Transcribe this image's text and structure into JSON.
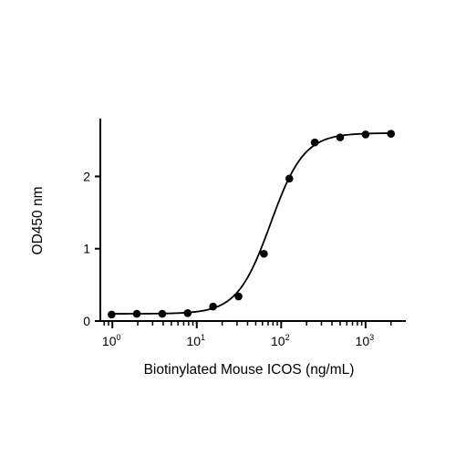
{
  "chart_data": {
    "type": "scatter",
    "title": "",
    "xlabel": "Biotinylated Mouse ICOS (ng/mL)",
    "ylabel": "OD450 nm",
    "x_scale": "log",
    "xlim": [
      0.72,
      3000
    ],
    "ylim": [
      0,
      2.8
    ],
    "x_ticks": [
      {
        "base": "10",
        "exp": "0",
        "value": 1
      },
      {
        "base": "10",
        "exp": "1",
        "value": 10
      },
      {
        "base": "10",
        "exp": "2",
        "value": 100
      },
      {
        "base": "10",
        "exp": "3",
        "value": 1000
      }
    ],
    "y_ticks": [
      {
        "label": "0",
        "value": 0
      },
      {
        "label": "1",
        "value": 1
      },
      {
        "label": "2",
        "value": 2
      }
    ],
    "grid": false,
    "legend": "none",
    "series": [
      {
        "points": [
          {
            "x": 0.98,
            "y": 0.09
          },
          {
            "x": 1.95,
            "y": 0.1
          },
          {
            "x": 3.9,
            "y": 0.1
          },
          {
            "x": 7.8,
            "y": 0.11
          },
          {
            "x": 15.6,
            "y": 0.2
          },
          {
            "x": 31.25,
            "y": 0.34
          },
          {
            "x": 62.5,
            "y": 0.93
          },
          {
            "x": 125,
            "y": 1.97
          },
          {
            "x": 250,
            "y": 2.47
          },
          {
            "x": 500,
            "y": 2.54
          },
          {
            "x": 1000,
            "y": 2.58
          },
          {
            "x": 2000,
            "y": 2.59
          }
        ],
        "fit": {
          "model": "4PL",
          "bottom": 0.1,
          "top": 2.6,
          "ec50": 75,
          "hill": 2.2
        },
        "color": "#000000"
      }
    ]
  }
}
